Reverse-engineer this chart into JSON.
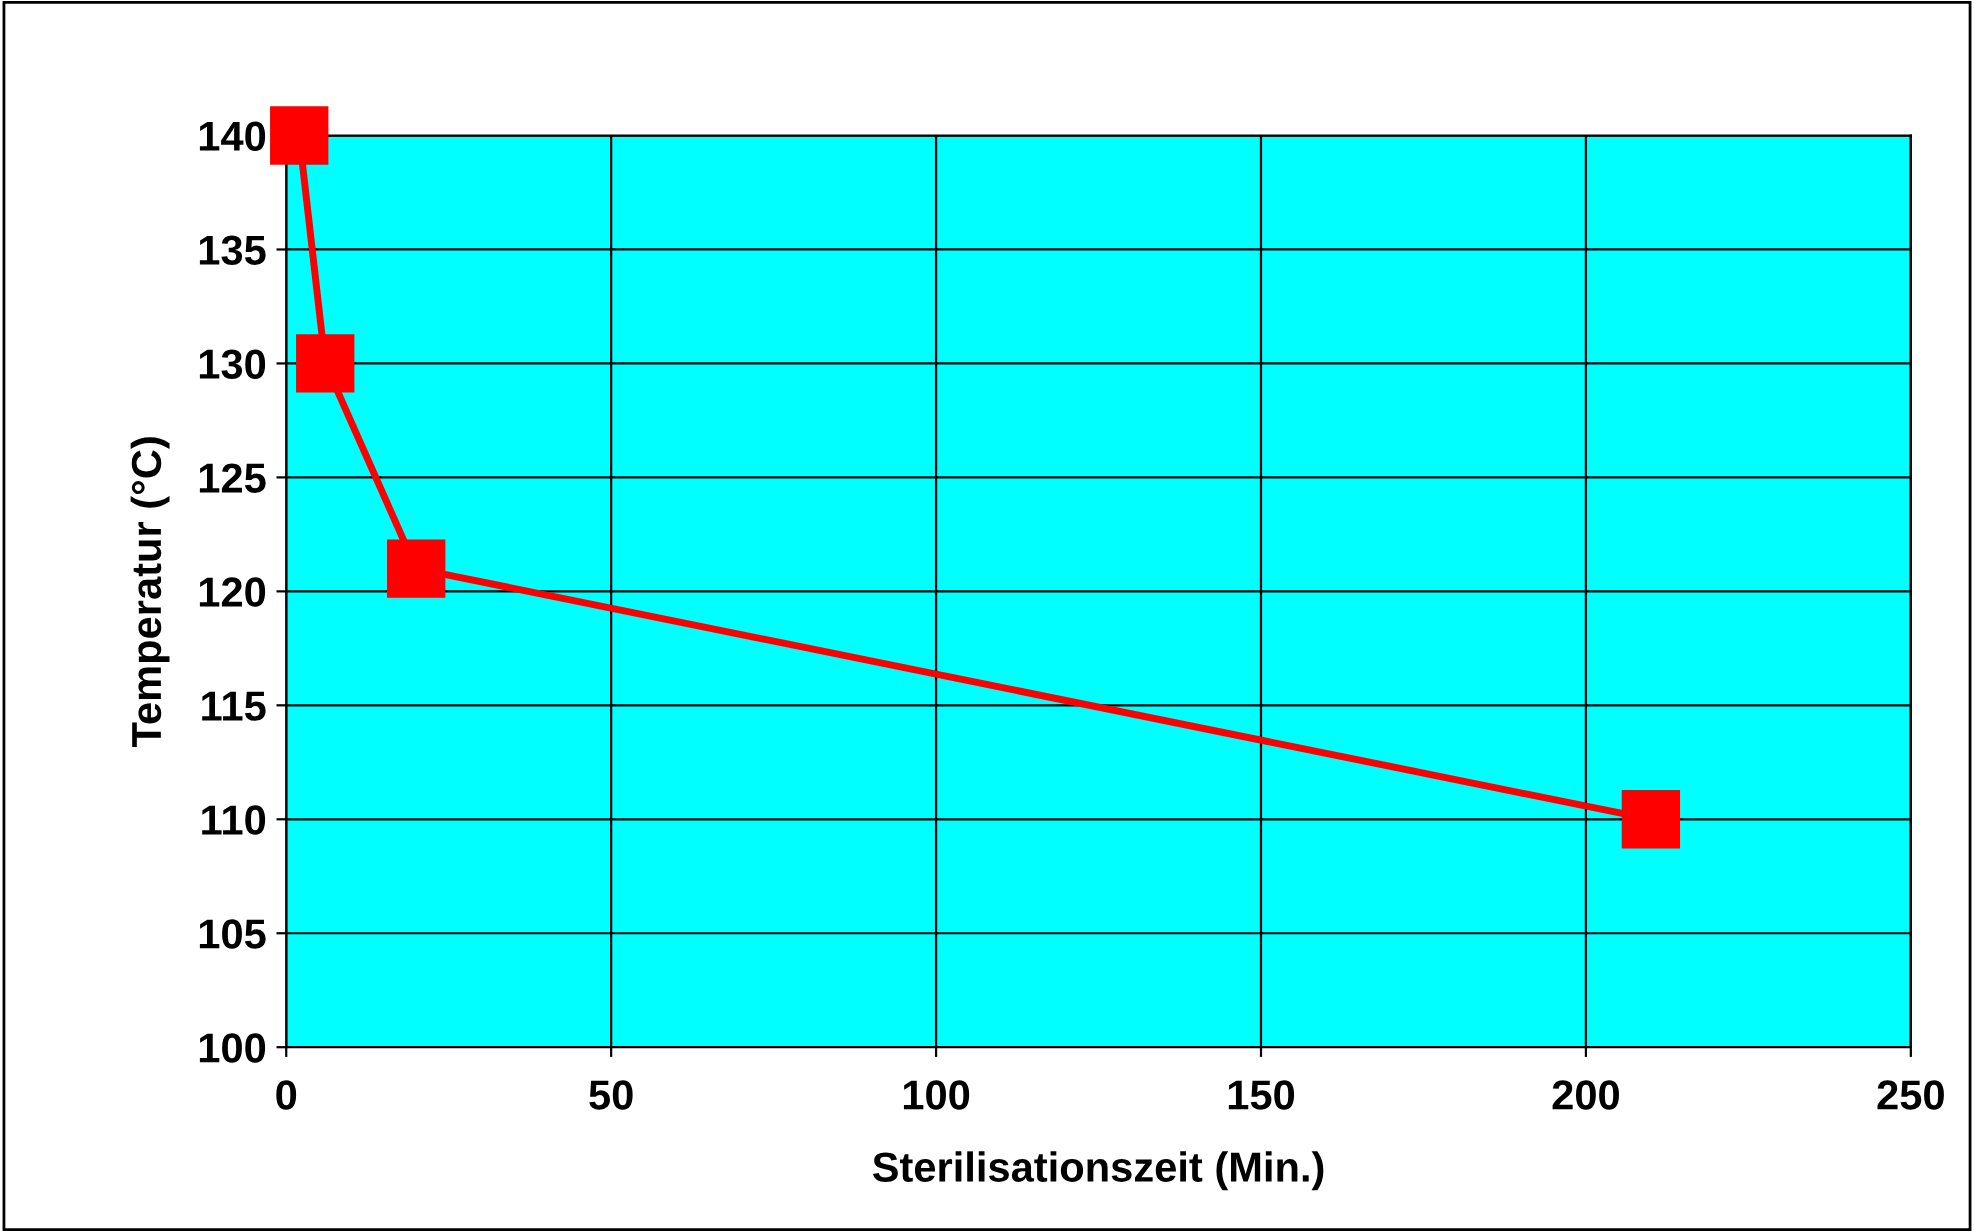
{
  "chart_data": {
    "type": "line",
    "xlabel": "Sterilisationszeit (Min.)",
    "ylabel": "Temperatur (°C)",
    "x": [
      2,
      6,
      20,
      210
    ],
    "series": [
      {
        "color": "#ff0000",
        "values": [
          140,
          130,
          121,
          110
        ]
      }
    ],
    "xlim": [
      0,
      250
    ],
    "xticks": [
      0,
      50,
      100,
      150,
      200,
      250
    ],
    "ylim": [
      100,
      140
    ],
    "yticks": [
      100,
      105,
      110,
      115,
      120,
      125,
      130,
      135,
      140
    ],
    "grid": true,
    "marker": "square",
    "line_style": "solid",
    "legend": false
  }
}
